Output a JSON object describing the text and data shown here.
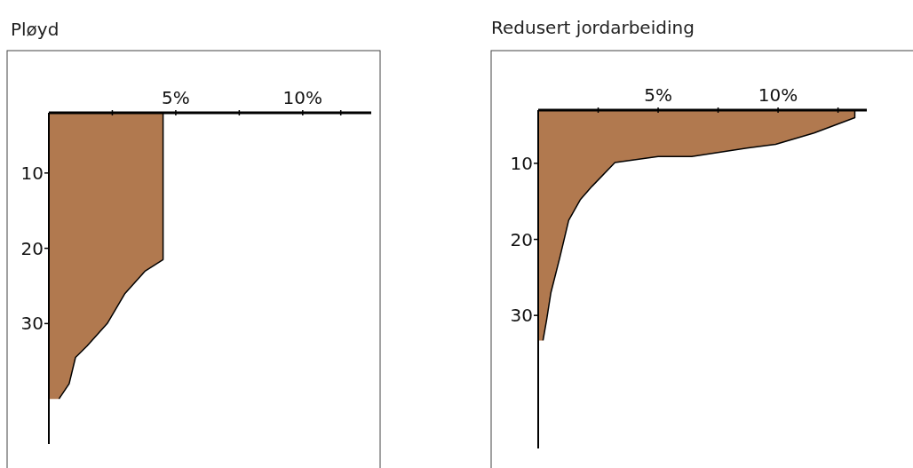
{
  "chart_data": [
    {
      "type": "area",
      "title": "Pløyd",
      "orientation": "horizontal",
      "xlim": [
        0,
        12.7
      ],
      "xticks": [
        {
          "value": 2.5,
          "label": null
        },
        {
          "value": 5,
          "label": "5%"
        },
        {
          "value": 7.5,
          "label": null
        },
        {
          "value": 10,
          "label": "10%"
        },
        {
          "value": 11.5,
          "label": null
        }
      ],
      "ylim": [
        46,
        2
      ],
      "yticks": [
        10,
        20,
        30
      ],
      "series": [
        {
          "color": "#a86a3c",
          "x": [
            2,
            21.5,
            23,
            26,
            30,
            33,
            34.5,
            38,
            40
          ],
          "values": [
            4.5,
            4.5,
            3.8,
            3.0,
            2.3,
            1.5,
            1.05,
            0.8,
            0.4
          ]
        }
      ]
    },
    {
      "type": "area",
      "title": "Redusert jordarbeiding",
      "orientation": "horizontal",
      "xlim": [
        0,
        13.7
      ],
      "xticks": [
        {
          "value": 2.5,
          "label": null
        },
        {
          "value": 5,
          "label": "5%"
        },
        {
          "value": 7.5,
          "label": null
        },
        {
          "value": 10,
          "label": "10%"
        },
        {
          "value": 12.5,
          "label": null
        }
      ],
      "ylim": [
        47.5,
        3
      ],
      "yticks": [
        10,
        20,
        30
      ],
      "series": [
        {
          "color": "#a86a3c",
          "x": [
            3,
            4,
            6,
            7.5,
            8,
            9.1,
            9.1,
            9.9,
            13,
            14.8,
            17.5,
            22.4,
            27,
            30.6,
            33.3
          ],
          "values": [
            13.2,
            13.2,
            11.5,
            9.9,
            8.7,
            6.4,
            5.0,
            3.2,
            2.25,
            1.75,
            1.27,
            0.9,
            0.53,
            0.35,
            0.2
          ]
        }
      ]
    }
  ]
}
